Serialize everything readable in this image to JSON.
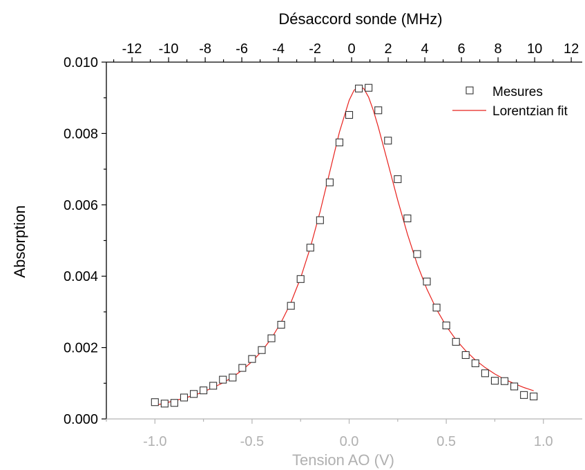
{
  "chart_data": {
    "type": "scatter",
    "xlabel": "Tension AO (V)",
    "ylabel": "Absorption",
    "x2label": "Désaccord sonde (MHz)",
    "xlim": [
      -1.25,
      1.2
    ],
    "ylim": [
      0.0,
      0.01
    ],
    "x2lim": [
      -13.4,
      12.6
    ],
    "xticks": [
      -1.0,
      -0.5,
      0.0,
      0.5,
      1.0
    ],
    "xtick_labels": [
      "-1.0",
      "-0.5",
      "0.0",
      "0.5",
      "1.0"
    ],
    "yticks": [
      0.0,
      0.002,
      0.004,
      0.006,
      0.008,
      0.01
    ],
    "ytick_labels": [
      "0.000",
      "0.002",
      "0.004",
      "0.006",
      "0.008",
      "0.010"
    ],
    "x2ticks": [
      -12,
      -10,
      -8,
      -6,
      -4,
      -2,
      0,
      2,
      4,
      6,
      8,
      10,
      12
    ],
    "x2tick_labels": [
      "-12",
      "-10",
      "-8",
      "-6",
      "-4",
      "-2",
      "0",
      "2",
      "4",
      "6",
      "8",
      "10",
      "12"
    ],
    "grid": false,
    "legend_position": "top-right",
    "series": [
      {
        "name": "Mesures",
        "kind": "markers",
        "marker": "open-square",
        "color": "#333333",
        "x": [
          -1.0,
          -0.95,
          -0.9,
          -0.85,
          -0.8,
          -0.75,
          -0.7,
          -0.65,
          -0.6,
          -0.55,
          -0.5,
          -0.45,
          -0.4,
          -0.35,
          -0.3,
          -0.25,
          -0.2,
          -0.15,
          -0.1,
          -0.05,
          0.0,
          0.05,
          0.1,
          0.15,
          0.2,
          0.25,
          0.3,
          0.35,
          0.4,
          0.45,
          0.5,
          0.55,
          0.6,
          0.65,
          0.7,
          0.75,
          0.8,
          0.85,
          0.9,
          0.95
        ],
        "y": [
          0.00047,
          0.00043,
          0.00045,
          0.0006,
          0.0007,
          0.0008,
          0.00093,
          0.0011,
          0.00116,
          0.00143,
          0.00168,
          0.00193,
          0.00226,
          0.00264,
          0.00317,
          0.00392,
          0.0048,
          0.00557,
          0.00663,
          0.00775,
          0.00852,
          0.00926,
          0.00928,
          0.00865,
          0.0078,
          0.00672,
          0.00562,
          0.00462,
          0.00385,
          0.00312,
          0.00262,
          0.00216,
          0.00179,
          0.00156,
          0.00128,
          0.00107,
          0.00106,
          0.00091,
          0.00067,
          0.00063
        ]
      },
      {
        "name": "Lorentzian fit",
        "kind": "line",
        "color": "#e8211d",
        "x": [
          -1.0,
          -0.95,
          -0.9,
          -0.85,
          -0.8,
          -0.75,
          -0.7,
          -0.65,
          -0.6,
          -0.55,
          -0.5,
          -0.45,
          -0.4,
          -0.35,
          -0.3,
          -0.25,
          -0.2,
          -0.15,
          -0.1,
          -0.05,
          0.0,
          0.025,
          0.05,
          0.075,
          0.1,
          0.125,
          0.15,
          0.2,
          0.25,
          0.3,
          0.35,
          0.4,
          0.45,
          0.5,
          0.55,
          0.6,
          0.65,
          0.7,
          0.75,
          0.8,
          0.85,
          0.9,
          0.95
        ],
        "y": [
          0.00038,
          0.00044,
          0.00051,
          0.00058,
          0.00066,
          0.00076,
          0.00088,
          0.00101,
          0.00117,
          0.00137,
          0.00161,
          0.0019,
          0.00226,
          0.00271,
          0.00326,
          0.00395,
          0.0048,
          0.0058,
          0.00692,
          0.00804,
          0.00893,
          0.00921,
          0.00932,
          0.00926,
          0.00902,
          0.00864,
          0.00818,
          0.00716,
          0.00613,
          0.00518,
          0.00434,
          0.00364,
          0.00307,
          0.0026,
          0.00222,
          0.00191,
          0.00165,
          0.00144,
          0.00126,
          0.00111,
          0.00099,
          0.00088,
          0.00079
        ]
      }
    ]
  }
}
